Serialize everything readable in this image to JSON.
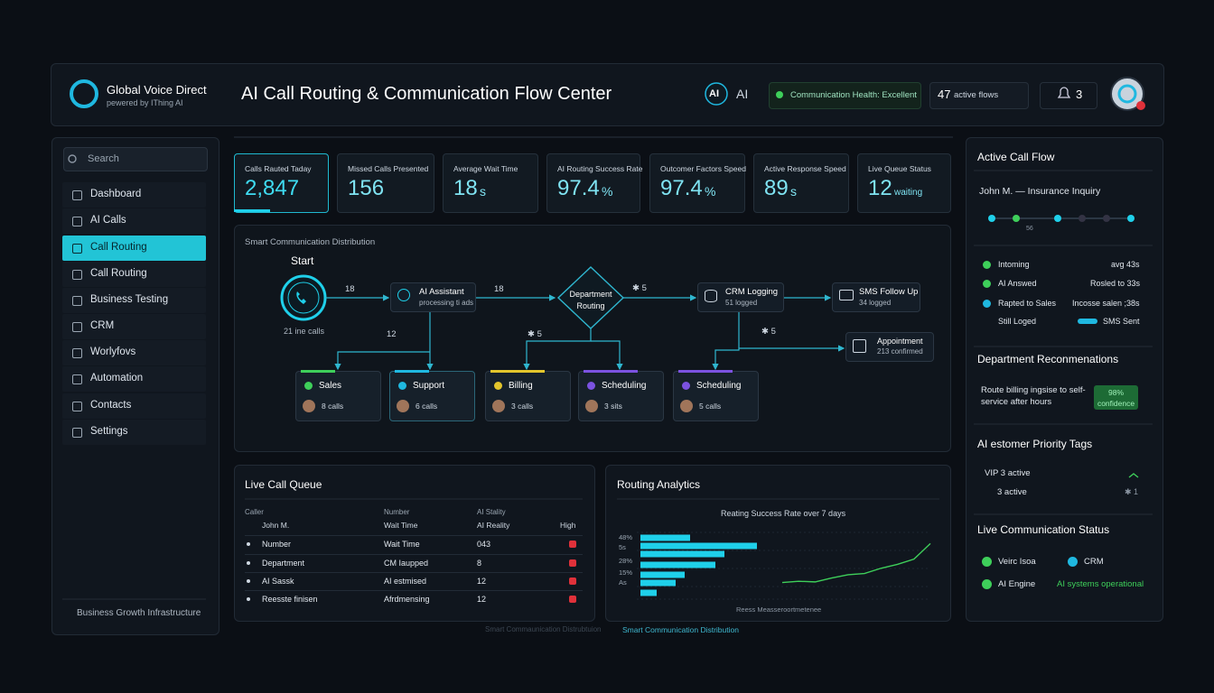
{
  "header": {
    "brand": "Global Voice Direct",
    "tagline": "pewered by IThing AI",
    "title": "AI Call Routing & Communication Flow Center",
    "ai_badge": "AI",
    "ai_label": "AI",
    "health": "Communication Health: Excellent",
    "active_flows_count": "47",
    "active_flows_label": "active flows",
    "notifications": "3"
  },
  "sidebar": {
    "search": "Search",
    "active": 2,
    "menu": [
      "Dashboard",
      "AI Calls",
      "Call Routing",
      "Call Routing",
      "Business Testing",
      "CRM",
      "Worlyfovs",
      "Automation",
      "Contacts",
      "Settings"
    ],
    "footer": "Business Growth Infrastructure"
  },
  "kpis": [
    {
      "label": "Calls Rauted Taday",
      "value": "2,847"
    },
    {
      "label": "Missed Calls Presented",
      "value": "156"
    },
    {
      "label": "Average Wait Time",
      "value": "18",
      "unit": "s"
    },
    {
      "label": "AI Routing Success Rate",
      "value": "97.4",
      "unit": "%"
    },
    {
      "label": "Outcomer Factors Speed",
      "value": "97.4",
      "unit": "%"
    },
    {
      "label": "Active Response Speed",
      "value": "89",
      "unit": "s"
    },
    {
      "label": "Live Queue Status",
      "value": "12",
      "unit": "waiting"
    }
  ],
  "flow": {
    "title": "Smart Communication Distribution",
    "start": "Start",
    "start_calls": "21 ine calls",
    "ai_node": {
      "title": "AI Assistant",
      "sub": "processing ti ads"
    },
    "department": "Department Routing",
    "crm": {
      "title": "CRM Logging",
      "sub": "51 logged"
    },
    "sms": {
      "title": "SMS Follow Up",
      "sub": "34 logged"
    },
    "appointment": {
      "title": "Appointment",
      "sub": "213 confirmed"
    },
    "edge_labels": [
      "18",
      "18",
      "✱ 5",
      "12",
      "✱ 5",
      "✱ 5"
    ]
  },
  "departments": [
    {
      "name": "Sales",
      "calls": "8 calls",
      "color": "#3ecf5a"
    },
    {
      "name": "Support",
      "calls": "6 calls",
      "color": "#1fb8e0"
    },
    {
      "name": "Billing",
      "calls": "3 calls",
      "color": "#e3c52c"
    },
    {
      "name": "Scheduling",
      "calls": "3 sits",
      "color": "#7b52e0"
    },
    {
      "name": "Scheduling",
      "calls": "5 calls",
      "color": "#7b52e0"
    }
  ],
  "queue": {
    "title": "Live Call Queue",
    "header": [
      "Caller",
      "Number",
      "AI Stality"
    ],
    "subheader": [
      "John M.",
      "Wait Time",
      "AI Reality",
      "High"
    ],
    "rows": [
      [
        "Number",
        "Wait Time",
        "043"
      ],
      [
        "Department",
        "CM Iaupped",
        "8"
      ],
      [
        "AI Sassk",
        "AI estmised",
        "12"
      ],
      [
        "Reesste finisen",
        "Afrdmensing",
        "12"
      ]
    ]
  },
  "analytics": {
    "title": "Routing Analytics",
    "chart_subtitle": "Reating Success Rate over 7 days",
    "axis_label": "Reess Measseroortmetenee",
    "bar_labels": [
      "48%",
      "5s",
      "28%",
      "15%",
      "As"
    ],
    "bar_values": [
      55,
      129,
      93,
      83,
      49,
      39,
      18
    ],
    "xlim": [
      0,
      140
    ],
    "line_values": [
      20,
      22,
      21,
      27,
      32,
      34,
      42,
      48,
      56,
      80
    ],
    "ylim": [
      0,
      100
    ],
    "bar_color": "#1fd0ea",
    "line_color": "#3ecf5a"
  },
  "right_panel": {
    "title": "Active Call Flow",
    "caller": "John M. — Insurance Inquiry",
    "timeline_label": "56",
    "events": [
      {
        "label": "Intoming",
        "detail": "avg 43s",
        "color": "#3ecf5a"
      },
      {
        "label": "AI Answed",
        "detail": "Rosled to 33s",
        "color": "#3ecf5a"
      },
      {
        "label": "Rapted to Sales",
        "detail": "Incosse salen ;38s",
        "color": "#1fb8e0"
      },
      {
        "label": "Still Loged",
        "detail": "SMS Sent",
        "color": "#1fb8e0"
      }
    ],
    "recommendations_title": "Department Reconmenations",
    "recommendation": "Route billing ingsise to self-service after hours",
    "confidence": "98% confidence",
    "tags_title": "AI estomer Priority Tags",
    "tag_vip": "VIP 3 active",
    "tag_active": "3 active",
    "tag_count": "✱ 1",
    "status_title": "Live Communication Status",
    "status": [
      "Veirc Isoa",
      "CRM",
      "AI Engine",
      "AI systems operational"
    ]
  },
  "footer_links": [
    "Smart Commaunication Distrubtuion",
    "Smart Communication Distribution"
  ]
}
